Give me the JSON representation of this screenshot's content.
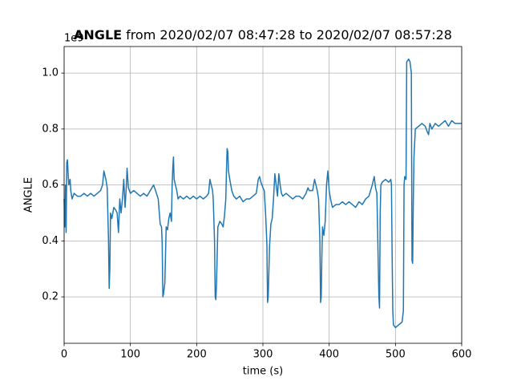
{
  "chart_data": {
    "type": "line",
    "title_variable": "ANGLE",
    "title": "from 2020/02/07 08:47:28 to 2020/02/07 08:57:28",
    "xlabel": "time (s)",
    "ylabel": "ANGLE",
    "y_offset_label": "1e9",
    "xlim": [
      0,
      600
    ],
    "xticks": [
      0,
      100,
      200,
      300,
      400,
      500,
      600
    ],
    "ylim": [
      0.034,
      1.095
    ],
    "yticks": [
      0.2,
      0.4,
      0.6,
      0.8,
      {
        "value": 1,
        "label": "1.0"
      }
    ],
    "grid": true,
    "series": [
      {
        "color": "#1f77b4",
        "x": [
          0,
          1,
          2,
          3,
          4,
          5,
          7,
          9,
          10,
          12,
          15,
          20,
          25,
          30,
          35,
          40,
          45,
          50,
          55,
          58,
          60,
          63,
          65,
          67,
          68,
          69,
          70,
          72,
          75,
          78,
          80,
          82,
          84,
          86,
          88,
          90,
          92,
          94,
          95,
          97,
          100,
          105,
          110,
          115,
          120,
          125,
          130,
          135,
          138,
          142,
          145,
          147,
          148,
          149,
          150,
          152,
          154,
          156,
          158,
          160,
          162,
          163,
          164,
          165,
          166,
          168,
          170,
          172,
          175,
          180,
          185,
          190,
          195,
          200,
          205,
          210,
          215,
          218,
          220,
          222,
          224,
          225,
          227,
          228,
          229,
          230,
          232,
          235,
          238,
          240,
          242,
          244,
          245,
          246,
          247,
          248,
          250,
          253,
          256,
          260,
          265,
          270,
          275,
          280,
          285,
          290,
          293,
          295,
          297,
          300,
          302,
          304,
          306,
          307,
          308,
          310,
          312,
          314,
          316,
          318,
          320,
          322,
          324,
          326,
          328,
          330,
          335,
          340,
          345,
          350,
          355,
          360,
          365,
          368,
          370,
          375,
          378,
          380,
          382,
          384,
          386,
          387,
          388,
          389,
          390,
          392,
          394,
          396,
          398,
          400,
          402,
          405,
          410,
          415,
          420,
          425,
          430,
          435,
          440,
          445,
          450,
          455,
          460,
          465,
          468,
          470,
          472,
          473,
          475,
          476,
          477,
          478,
          480,
          485,
          490,
          493,
          494,
          495,
          496,
          497,
          500,
          505,
          510,
          512,
          513,
          514,
          516,
          517,
          520,
          522,
          524,
          525,
          526,
          527,
          528,
          529,
          530,
          535,
          540,
          545,
          548,
          550,
          552,
          555,
          560,
          565,
          570,
          575,
          580,
          585,
          590,
          595,
          600
        ],
        "values": [
          0.55,
          0.45,
          0.6,
          0.43,
          0.68,
          0.69,
          0.6,
          0.62,
          0.58,
          0.55,
          0.57,
          0.56,
          0.56,
          0.57,
          0.56,
          0.57,
          0.56,
          0.57,
          0.58,
          0.6,
          0.65,
          0.62,
          0.59,
          0.4,
          0.23,
          0.3,
          0.5,
          0.48,
          0.52,
          0.51,
          0.5,
          0.43,
          0.55,
          0.5,
          0.55,
          0.62,
          0.52,
          0.6,
          0.66,
          0.59,
          0.57,
          0.58,
          0.57,
          0.56,
          0.57,
          0.56,
          0.58,
          0.6,
          0.58,
          0.55,
          0.46,
          0.45,
          0.39,
          0.2,
          0.21,
          0.25,
          0.45,
          0.44,
          0.48,
          0.5,
          0.47,
          0.6,
          0.66,
          0.7,
          0.62,
          0.6,
          0.58,
          0.55,
          0.56,
          0.55,
          0.56,
          0.55,
          0.56,
          0.55,
          0.56,
          0.55,
          0.56,
          0.57,
          0.62,
          0.6,
          0.58,
          0.55,
          0.4,
          0.2,
          0.19,
          0.25,
          0.45,
          0.47,
          0.46,
          0.45,
          0.49,
          0.55,
          0.65,
          0.73,
          0.72,
          0.65,
          0.62,
          0.58,
          0.56,
          0.55,
          0.56,
          0.54,
          0.55,
          0.55,
          0.56,
          0.57,
          0.62,
          0.63,
          0.61,
          0.59,
          0.58,
          0.5,
          0.39,
          0.18,
          0.2,
          0.38,
          0.46,
          0.48,
          0.55,
          0.64,
          0.6,
          0.56,
          0.64,
          0.6,
          0.57,
          0.56,
          0.57,
          0.56,
          0.55,
          0.56,
          0.56,
          0.55,
          0.57,
          0.59,
          0.58,
          0.58,
          0.62,
          0.6,
          0.58,
          0.55,
          0.4,
          0.18,
          0.2,
          0.35,
          0.45,
          0.42,
          0.47,
          0.6,
          0.65,
          0.58,
          0.55,
          0.52,
          0.53,
          0.53,
          0.54,
          0.53,
          0.54,
          0.53,
          0.52,
          0.54,
          0.53,
          0.55,
          0.56,
          0.6,
          0.63,
          0.59,
          0.57,
          0.45,
          0.2,
          0.16,
          0.5,
          0.6,
          0.61,
          0.62,
          0.61,
          0.62,
          0.6,
          0.35,
          0.15,
          0.1,
          0.09,
          0.1,
          0.11,
          0.15,
          0.6,
          0.63,
          0.62,
          1.04,
          1.05,
          1.04,
          1.0,
          0.33,
          0.32,
          0.55,
          0.7,
          0.75,
          0.8,
          0.81,
          0.82,
          0.81,
          0.79,
          0.78,
          0.82,
          0.8,
          0.82,
          0.81,
          0.82,
          0.83,
          0.81,
          0.83,
          0.82,
          0.82,
          0.82
        ]
      }
    ]
  }
}
